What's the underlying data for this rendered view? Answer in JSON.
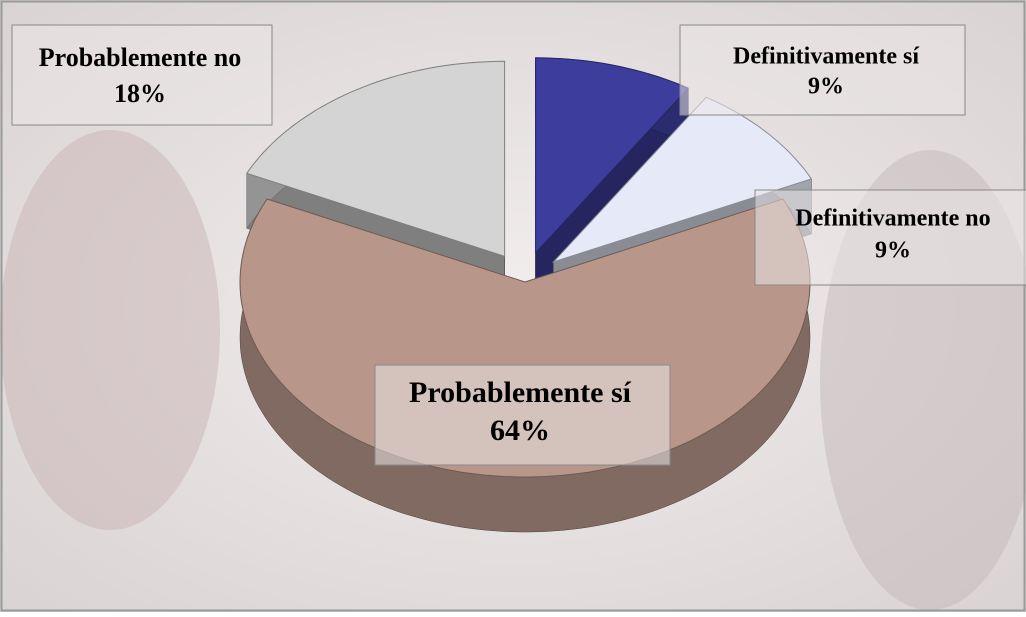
{
  "chart_data": {
    "type": "pie",
    "categories": [
      "Definitivamente sí",
      "Definitivamente no",
      "Probablemente sí",
      "Probablemente no"
    ],
    "values": [
      9,
      9,
      64,
      18
    ],
    "value_labels": [
      "9%",
      "9%",
      "64%",
      "18%"
    ],
    "colors": [
      "#3d3d9e",
      "#e6eaf8",
      "#b8978a",
      "#d4d4d4"
    ]
  }
}
